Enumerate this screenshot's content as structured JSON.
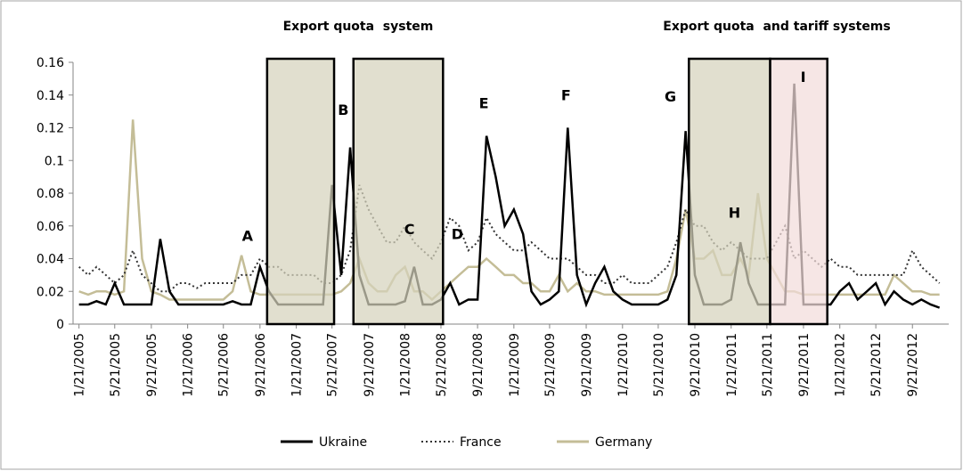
{
  "chart_data": {
    "type": "line",
    "headings": [
      "Export quota  system",
      "Export quota  and tariff systems"
    ],
    "x": [
      "1/21/2005",
      "2/21/2005",
      "3/21/2005",
      "4/21/2005",
      "5/21/2005",
      "6/21/2005",
      "7/21/2005",
      "8/21/2005",
      "9/21/2005",
      "10/21/2005",
      "11/21/2005",
      "12/21/2005",
      "1/21/2006",
      "2/21/2006",
      "3/21/2006",
      "4/21/2006",
      "5/21/2006",
      "6/21/2006",
      "7/21/2006",
      "8/21/2006",
      "9/21/2006",
      "10/21/2006",
      "11/21/2006",
      "12/21/2006",
      "1/21/2007",
      "2/21/2007",
      "3/21/2007",
      "4/21/2007",
      "5/21/2007",
      "6/21/2007",
      "7/21/2007",
      "8/21/2007",
      "9/21/2007",
      "10/21/2007",
      "11/21/2007",
      "12/21/2007",
      "1/21/2008",
      "2/21/2008",
      "3/21/2008",
      "4/21/2008",
      "5/21/2008",
      "6/21/2008",
      "7/21/2008",
      "8/21/2008",
      "9/21/2008",
      "10/21/2008",
      "11/21/2008",
      "12/21/2008",
      "1/21/2009",
      "2/21/2009",
      "3/21/2009",
      "4/21/2009",
      "5/21/2009",
      "6/21/2009",
      "7/21/2009",
      "8/21/2009",
      "9/21/2009",
      "10/21/2009",
      "11/21/2009",
      "12/21/2009",
      "1/21/2010",
      "2/21/2010",
      "3/21/2010",
      "4/21/2010",
      "5/21/2010",
      "6/21/2010",
      "7/21/2010",
      "8/21/2010",
      "9/21/2010",
      "10/21/2010",
      "11/21/2010",
      "12/21/2010",
      "1/21/2011",
      "2/21/2011",
      "3/21/2011",
      "4/21/2011",
      "5/21/2011",
      "6/21/2011",
      "7/21/2011",
      "8/21/2011",
      "9/21/2011",
      "10/21/2011",
      "11/21/2011",
      "12/21/2011",
      "1/21/2012",
      "2/21/2012",
      "3/21/2012",
      "4/21/2012",
      "5/21/2012",
      "6/21/2012",
      "7/21/2012",
      "8/21/2012",
      "9/21/2012",
      "10/21/2012",
      "11/21/2012",
      "12/21/2012"
    ],
    "series": [
      {
        "name": "Ukraine",
        "color": "#000000",
        "dash": "solid",
        "values": [
          0.012,
          0.012,
          0.014,
          0.012,
          0.025,
          0.012,
          0.012,
          0.012,
          0.012,
          0.052,
          0.02,
          0.012,
          0.012,
          0.012,
          0.012,
          0.012,
          0.012,
          0.014,
          0.012,
          0.012,
          0.035,
          0.02,
          0.012,
          0.012,
          0.012,
          0.012,
          0.012,
          0.012,
          0.085,
          0.03,
          0.108,
          0.03,
          0.012,
          0.012,
          0.012,
          0.012,
          0.014,
          0.035,
          0.012,
          0.012,
          0.015,
          0.025,
          0.012,
          0.015,
          0.015,
          0.115,
          0.09,
          0.06,
          0.07,
          0.055,
          0.02,
          0.012,
          0.015,
          0.02,
          0.12,
          0.03,
          0.012,
          0.025,
          0.035,
          0.02,
          0.015,
          0.012,
          0.012,
          0.012,
          0.012,
          0.015,
          0.03,
          0.118,
          0.03,
          0.012,
          0.012,
          0.012,
          0.015,
          0.05,
          0.025,
          0.012,
          0.012,
          0.012,
          0.012,
          0.147,
          0.012,
          0.012,
          0.012,
          0.012,
          0.02,
          0.025,
          0.015,
          0.02,
          0.025,
          0.012,
          0.02,
          0.015,
          0.012,
          0.015,
          0.012,
          0.01
        ]
      },
      {
        "name": "France",
        "color": "#333333",
        "dash": "dotted",
        "values": [
          0.035,
          0.03,
          0.035,
          0.03,
          0.025,
          0.03,
          0.045,
          0.03,
          0.025,
          0.02,
          0.02,
          0.025,
          0.025,
          0.022,
          0.025,
          0.025,
          0.025,
          0.025,
          0.03,
          0.03,
          0.04,
          0.035,
          0.035,
          0.03,
          0.03,
          0.03,
          0.03,
          0.025,
          0.025,
          0.03,
          0.045,
          0.085,
          0.07,
          0.06,
          0.05,
          0.05,
          0.06,
          0.05,
          0.045,
          0.04,
          0.05,
          0.065,
          0.06,
          0.045,
          0.05,
          0.065,
          0.055,
          0.05,
          0.045,
          0.045,
          0.05,
          0.045,
          0.04,
          0.04,
          0.04,
          0.035,
          0.03,
          0.03,
          0.025,
          0.025,
          0.03,
          0.025,
          0.025,
          0.025,
          0.03,
          0.035,
          0.05,
          0.07,
          0.06,
          0.06,
          0.05,
          0.045,
          0.05,
          0.045,
          0.04,
          0.04,
          0.04,
          0.05,
          0.06,
          0.04,
          0.045,
          0.04,
          0.035,
          0.04,
          0.035,
          0.035,
          0.03,
          0.03,
          0.03,
          0.03,
          0.03,
          0.03,
          0.045,
          0.035,
          0.03,
          0.025
        ]
      },
      {
        "name": "Germany",
        "color": "#c4bd97",
        "dash": "solid",
        "values": [
          0.02,
          0.018,
          0.02,
          0.02,
          0.018,
          0.02,
          0.125,
          0.04,
          0.02,
          0.018,
          0.015,
          0.015,
          0.015,
          0.015,
          0.015,
          0.015,
          0.015,
          0.02,
          0.042,
          0.02,
          0.018,
          0.018,
          0.018,
          0.018,
          0.018,
          0.018,
          0.018,
          0.018,
          0.018,
          0.02,
          0.025,
          0.04,
          0.025,
          0.02,
          0.02,
          0.03,
          0.035,
          0.02,
          0.02,
          0.015,
          0.02,
          0.025,
          0.03,
          0.035,
          0.035,
          0.04,
          0.035,
          0.03,
          0.03,
          0.025,
          0.025,
          0.02,
          0.02,
          0.03,
          0.02,
          0.025,
          0.02,
          0.02,
          0.018,
          0.018,
          0.018,
          0.018,
          0.018,
          0.018,
          0.018,
          0.02,
          0.04,
          0.07,
          0.04,
          0.04,
          0.045,
          0.03,
          0.03,
          0.04,
          0.03,
          0.08,
          0.04,
          0.03,
          0.02,
          0.02,
          0.018,
          0.018,
          0.018,
          0.018,
          0.018,
          0.018,
          0.018,
          0.018,
          0.018,
          0.018,
          0.03,
          0.025,
          0.02,
          0.02,
          0.018,
          0.018
        ]
      }
    ],
    "xlim": [
      "1/1/2005",
      "1/21/2013"
    ],
    "xticks": [
      "1/21/2005",
      "5/21/2005",
      "9/21/2005",
      "1/21/2006",
      "5/21/2006",
      "9/21/2006",
      "1/21/2007",
      "5/21/2007",
      "9/21/2007",
      "1/21/2008",
      "5/21/2008",
      "9/21/2008",
      "1/21/2009",
      "5/21/2009",
      "9/21/2009",
      "1/21/2010",
      "5/21/2010",
      "9/21/2010",
      "1/21/2011",
      "5/21/2011",
      "9/21/2011",
      "1/21/2012",
      "5/21/2012",
      "9/21/2012"
    ],
    "ylim": [
      0,
      0.16
    ],
    "yticks": [
      0,
      0.02,
      0.04,
      0.06,
      0.08,
      0.1,
      0.12,
      0.14,
      0.16
    ],
    "regions": [
      {
        "start": "10/15/2006",
        "end": "5/28/2007",
        "color": "#d6d2bc"
      },
      {
        "start": "8/1/2007",
        "end": "5/28/2008",
        "color": "#d6d2bc"
      },
      {
        "start": "9/1/2010",
        "end": "6/1/2011",
        "color": "#d6d2bc"
      },
      {
        "start": "6/1/2011",
        "end": "12/10/2011",
        "color": "#f2dcdb"
      }
    ],
    "annotations": [
      {
        "text": "A",
        "x": "8/10/2006",
        "y": 0.051
      },
      {
        "text": "B",
        "x": "6/28/2007",
        "y": 0.128
      },
      {
        "text": "C",
        "x": "2/5/2008",
        "y": 0.055
      },
      {
        "text": "D",
        "x": "7/15/2008",
        "y": 0.052
      },
      {
        "text": "E",
        "x": "10/12/2008",
        "y": 0.132
      },
      {
        "text": "F",
        "x": "7/15/2009",
        "y": 0.137
      },
      {
        "text": "G",
        "x": "7/1/2010",
        "y": 0.136
      },
      {
        "text": "H",
        "x": "2/1/2011",
        "y": 0.065
      },
      {
        "text": "I",
        "x": "9/20/2011",
        "y": 0.148
      }
    ],
    "legend": "bottom"
  }
}
